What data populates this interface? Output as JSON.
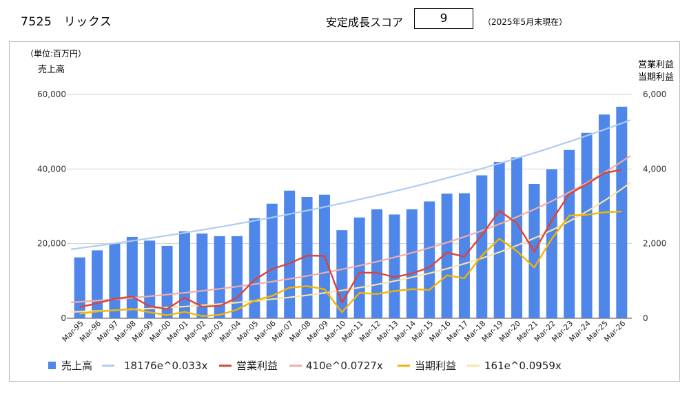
{
  "header": {
    "company": "7525　リックス",
    "score_label": "安定成長スコア",
    "score_value": "9",
    "score_date": "（2025年5月末現在）"
  },
  "colors": {
    "sales_bar": "#4e86e9",
    "sales_trend": "#aeccf3",
    "operating": "#db4437",
    "operating_trend": "#f2aca4",
    "net": "#f4b400",
    "net_trend": "#fbe3a1",
    "grid": "#d0d0d0"
  },
  "chart_data": {
    "type": "bar",
    "unit_label": "（単位:百万円）",
    "left_axis_label": "売上高",
    "right_axis_label_1": "営業利益",
    "right_axis_label_2": "当期利益",
    "categories": [
      "Mar-95",
      "Mar-96",
      "Mar-97",
      "Mar-98",
      "Mar-99",
      "Mar-00",
      "Mar-01",
      "Mar-02",
      "Mar-03",
      "Mar-04",
      "Mar-05",
      "Mar-06",
      "Mar-07",
      "Mar-08",
      "Mar-09",
      "Mar-10",
      "Mar-11",
      "Mar-12",
      "Mar-13",
      "Mar-14",
      "Mar-15",
      "Mar-16",
      "Mar-17",
      "Mar-18",
      "Mar-19",
      "Mar-20",
      "Mar-21",
      "Mar-22",
      "Mar-23",
      "Mar-24",
      "Mar-25",
      "Mar-26"
    ],
    "left_ylim": [
      0,
      60000
    ],
    "left_ticks": [
      "0",
      "20,000",
      "40,000",
      "60,000"
    ],
    "right_ylim": [
      0,
      6000
    ],
    "right_ticks": [
      "0",
      "2,000",
      "4,000",
      "6,000"
    ],
    "series": [
      {
        "name": "売上高",
        "kind": "bar",
        "axis": "left",
        "values": [
          16300,
          18200,
          20000,
          21800,
          20800,
          19400,
          23300,
          22700,
          22000,
          22000,
          26800,
          30700,
          34200,
          32500,
          33100,
          23600,
          27000,
          29200,
          27800,
          29200,
          31300,
          33400,
          33500,
          38300,
          41900,
          43100,
          36000,
          39900,
          45100,
          49700,
          54600,
          56700
        ]
      },
      {
        "name": "18176e^0.033x",
        "kind": "trend",
        "axis": "left",
        "a": 18176,
        "b": 0.033
      },
      {
        "name": "営業利益",
        "kind": "line",
        "axis": "right",
        "values": [
          300,
          400,
          520,
          580,
          320,
          250,
          550,
          310,
          330,
          550,
          1030,
          1320,
          1470,
          1680,
          1670,
          420,
          1220,
          1220,
          1100,
          1200,
          1360,
          1760,
          1650,
          2230,
          2880,
          2550,
          1780,
          2620,
          3330,
          3590,
          3890,
          3980
        ]
      },
      {
        "name": "410e^0.0727x",
        "kind": "trend",
        "axis": "right",
        "a": 410,
        "b": 0.0727
      },
      {
        "name": "当期利益",
        "kind": "line",
        "axis": "right",
        "values": [
          120,
          180,
          210,
          250,
          160,
          80,
          170,
          60,
          90,
          230,
          470,
          600,
          820,
          860,
          780,
          160,
          680,
          650,
          730,
          780,
          760,
          1150,
          1070,
          1680,
          2130,
          1800,
          1360,
          2130,
          2750,
          2770,
          2840,
          2860
        ]
      },
      {
        "name": "161e^0.0959x",
        "kind": "trend",
        "axis": "right",
        "a": 161,
        "b": 0.0959
      }
    ]
  }
}
